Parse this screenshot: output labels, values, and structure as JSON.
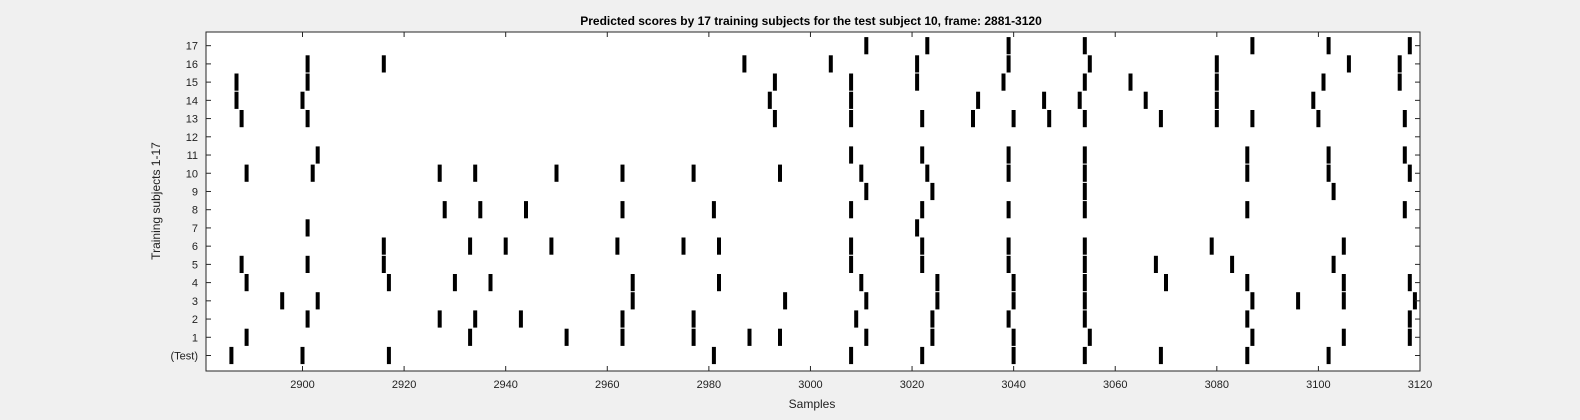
{
  "chart_data": {
    "type": "heatmap",
    "title": "Predicted scores by 17 training subjects for the test subject 10, frame: 2881-3120",
    "xlabel": "Samples",
    "ylabel": "Training subjects 1-17",
    "xlim": [
      2881,
      3120
    ],
    "x_ticks": [
      2900,
      2920,
      2940,
      2960,
      2980,
      3000,
      3020,
      3040,
      3060,
      3080,
      3100,
      3120
    ],
    "y_tick_labels": [
      "(Test)",
      "1",
      "2",
      "3",
      "4",
      "5",
      "6",
      "7",
      "8",
      "9",
      "10",
      "11",
      "12",
      "13",
      "14",
      "15",
      "16",
      "17"
    ],
    "grid": false,
    "legend": "none",
    "colors": {
      "mark": "#000000",
      "plot_background": "#ffffff",
      "figure_background": "#f0f0f0"
    },
    "rows": [
      {
        "label": "(Test)",
        "marks": [
          2886,
          2900,
          2917,
          2981,
          3008,
          3022,
          3040,
          3054,
          3069,
          3086,
          3102
        ]
      },
      {
        "label": "1",
        "marks": [
          2889,
          2933,
          2952,
          2963,
          2977,
          2988,
          2994,
          3011,
          3024,
          3040,
          3055,
          3087,
          3105,
          3118
        ]
      },
      {
        "label": "2",
        "marks": [
          2901,
          2927,
          2934,
          2943,
          2963,
          2977,
          3009,
          3024,
          3039,
          3054,
          3086,
          3118
        ]
      },
      {
        "label": "3",
        "marks": [
          2896,
          2903,
          2965,
          2995,
          3011,
          3025,
          3040,
          3054,
          3087,
          3096,
          3105,
          3119
        ]
      },
      {
        "label": "4",
        "marks": [
          2889,
          2917,
          2930,
          2937,
          2965,
          2982,
          3010,
          3025,
          3040,
          3054,
          3070,
          3086,
          3105,
          3118
        ]
      },
      {
        "label": "5",
        "marks": [
          2888,
          2901,
          2916,
          3008,
          3022,
          3039,
          3054,
          3068,
          3083,
          3103
        ]
      },
      {
        "label": "6",
        "marks": [
          2916,
          2933,
          2940,
          2949,
          2962,
          2975,
          2982,
          3008,
          3022,
          3039,
          3054,
          3079,
          3105
        ]
      },
      {
        "label": "7",
        "marks": [
          2901,
          3021
        ]
      },
      {
        "label": "8",
        "marks": [
          2928,
          2935,
          2944,
          2963,
          2981,
          3008,
          3022,
          3039,
          3054,
          3086,
          3117
        ]
      },
      {
        "label": "9",
        "marks": [
          3011,
          3024,
          3054,
          3103
        ]
      },
      {
        "label": "10",
        "marks": [
          2889,
          2902,
          2927,
          2934,
          2950,
          2963,
          2977,
          2994,
          3010,
          3023,
          3039,
          3054,
          3086,
          3102,
          3118
        ]
      },
      {
        "label": "11",
        "marks": [
          2903,
          3008,
          3022,
          3039,
          3054,
          3086,
          3102,
          3117
        ]
      },
      {
        "label": "12",
        "marks": []
      },
      {
        "label": "13",
        "marks": [
          2888,
          2901,
          2993,
          3008,
          3022,
          3032,
          3040,
          3047,
          3054,
          3069,
          3080,
          3087,
          3100,
          3117
        ]
      },
      {
        "label": "14",
        "marks": [
          2887,
          2900,
          2992,
          3008,
          3033,
          3046,
          3053,
          3066,
          3080,
          3099
        ]
      },
      {
        "label": "15",
        "marks": [
          2887,
          2901,
          2993,
          3008,
          3021,
          3038,
          3054,
          3063,
          3080,
          3101,
          3116
        ]
      },
      {
        "label": "16",
        "marks": [
          2901,
          2916,
          2987,
          3004,
          3021,
          3039,
          3055,
          3080,
          3106,
          3116
        ]
      },
      {
        "label": "17",
        "marks": [
          3011,
          3023,
          3039,
          3054,
          3087,
          3102,
          3118
        ]
      }
    ]
  }
}
